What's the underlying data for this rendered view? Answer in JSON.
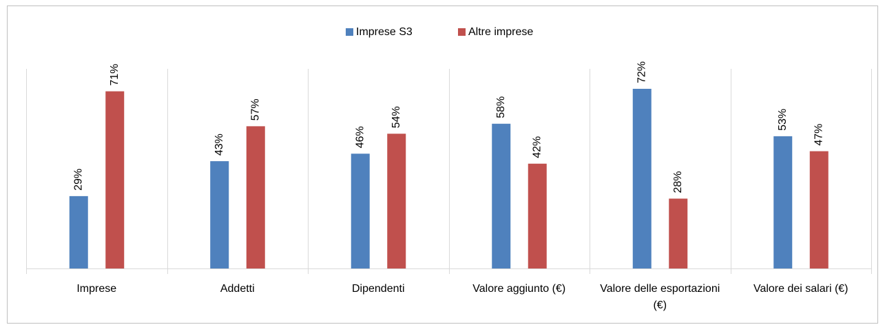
{
  "chart_data": {
    "type": "bar",
    "categories": [
      "Imprese",
      "Addetti",
      "Dipendenti",
      "Valore aggiunto (€)",
      "Valore delle esportazioni (€)",
      "Valore dei salari (€)"
    ],
    "series": [
      {
        "name": "Imprese S3",
        "color": "#4f81bd",
        "values": [
          29,
          43,
          46,
          58,
          72,
          53
        ],
        "value_labels": [
          "29%",
          "43%",
          "46%",
          "58%",
          "72%",
          "53%"
        ]
      },
      {
        "name": "Altre imprese",
        "color": "#c0504d",
        "values": [
          71,
          57,
          54,
          42,
          28,
          47
        ],
        "value_labels": [
          "71%",
          "57%",
          "54%",
          "42%",
          "28%",
          "47%"
        ]
      }
    ],
    "ylim": [
      0,
      80
    ],
    "legend": "top"
  }
}
